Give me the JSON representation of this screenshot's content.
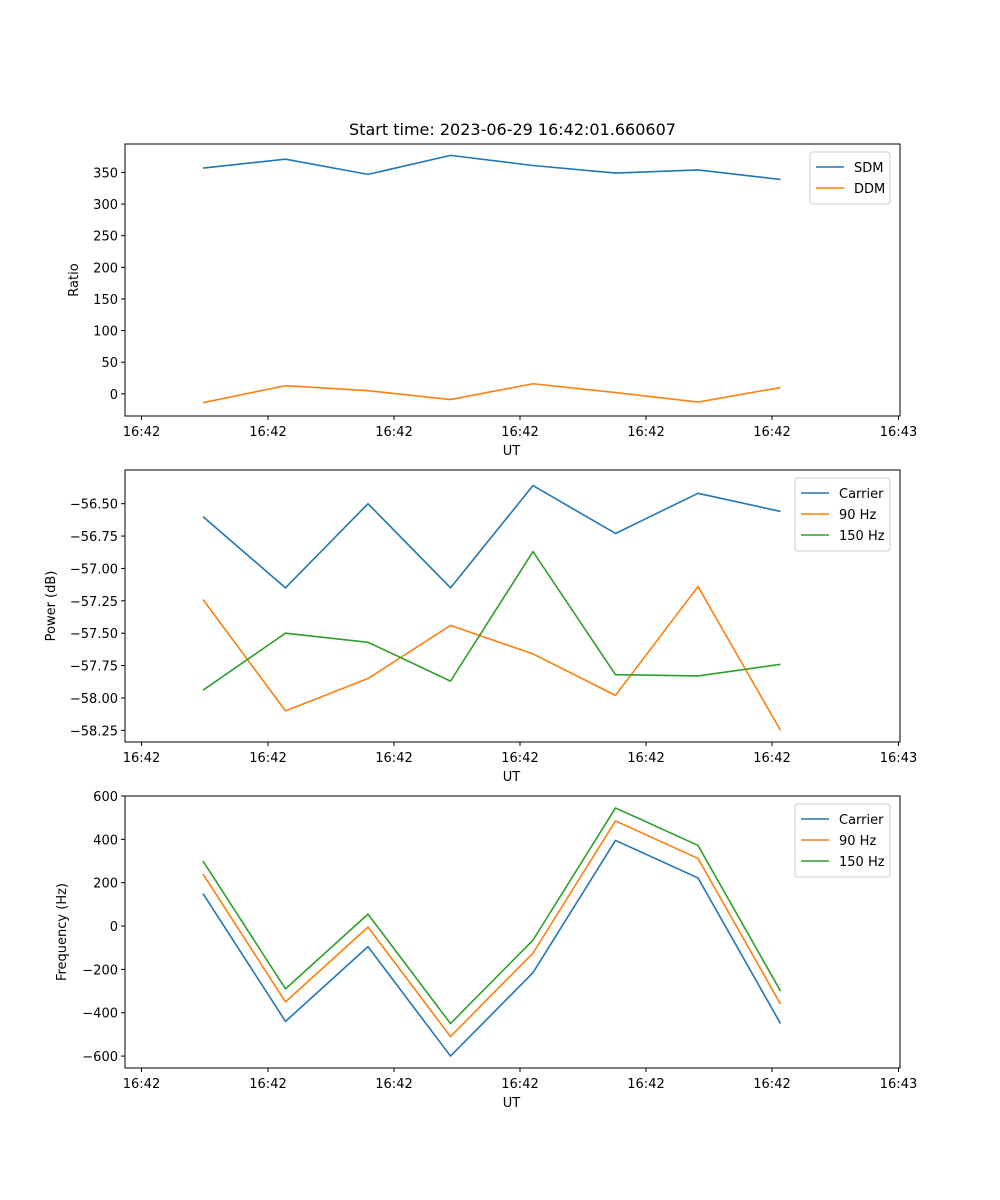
{
  "chart_data": [
    {
      "type": "line",
      "title": "Start time: 2023-06-29 16:42:01.660607",
      "xlabel": "UT",
      "ylabel": "Ratio",
      "x_tick_labels": [
        "16:42",
        "16:42",
        "16:42",
        "16:42",
        "16:42",
        "16:42",
        "16:43"
      ],
      "ylim": [
        -35,
        395
      ],
      "y_ticks": [
        0,
        50,
        100,
        150,
        200,
        250,
        300,
        350
      ],
      "legend": "top-right",
      "grid": false,
      "series": [
        {
          "name": "SDM",
          "color": "#1f77b4",
          "values": [
            357,
            371,
            347,
            377,
            361,
            349,
            354,
            339
          ]
        },
        {
          "name": "DDM",
          "color": "#ff7f0e",
          "values": [
            -14,
            13,
            5,
            -9,
            16,
            2,
            -13,
            10
          ]
        }
      ]
    },
    {
      "type": "line",
      "title": "",
      "xlabel": "UT",
      "ylabel": "Power (dB)",
      "x_tick_labels": [
        "16:42",
        "16:42",
        "16:42",
        "16:42",
        "16:42",
        "16:42",
        "16:43"
      ],
      "ylim": [
        -58.34,
        -56.24
      ],
      "y_ticks": [
        -56.5,
        -56.75,
        -57.0,
        -57.25,
        -57.5,
        -57.75,
        -58.0,
        -58.25
      ],
      "legend": "top-right",
      "grid": false,
      "series": [
        {
          "name": "Carrier",
          "color": "#1f77b4",
          "values": [
            -56.6,
            -57.15,
            -56.5,
            -57.15,
            -56.36,
            -56.73,
            -56.42,
            -56.56
          ]
        },
        {
          "name": "90 Hz",
          "color": "#ff7f0e",
          "values": [
            -57.24,
            -58.1,
            -57.85,
            -57.44,
            -57.66,
            -57.98,
            -57.14,
            -58.25
          ]
        },
        {
          "name": "150 Hz",
          "color": "#2ca02c",
          "values": [
            -57.94,
            -57.5,
            -57.57,
            -57.87,
            -56.87,
            -57.82,
            -57.83,
            -57.74
          ]
        }
      ]
    },
    {
      "type": "line",
      "title": "",
      "xlabel": "UT",
      "ylabel": "Frequency (Hz)",
      "x_tick_labels": [
        "16:42",
        "16:42",
        "16:42",
        "16:42",
        "16:42",
        "16:42",
        "16:43"
      ],
      "ylim": [
        -655,
        600
      ],
      "y_ticks": [
        600,
        400,
        200,
        0,
        -200,
        -400,
        -600
      ],
      "legend": "top-right",
      "grid": false,
      "series": [
        {
          "name": "Carrier",
          "color": "#1f77b4",
          "values": [
            150,
            -440,
            -95,
            -600,
            -215,
            395,
            222,
            -450
          ]
        },
        {
          "name": "90 Hz",
          "color": "#ff7f0e",
          "values": [
            240,
            -350,
            -5,
            -510,
            -125,
            485,
            312,
            -360
          ]
        },
        {
          "name": "150 Hz",
          "color": "#2ca02c",
          "values": [
            300,
            -290,
            55,
            -450,
            -65,
            545,
            372,
            -300
          ]
        }
      ]
    }
  ]
}
